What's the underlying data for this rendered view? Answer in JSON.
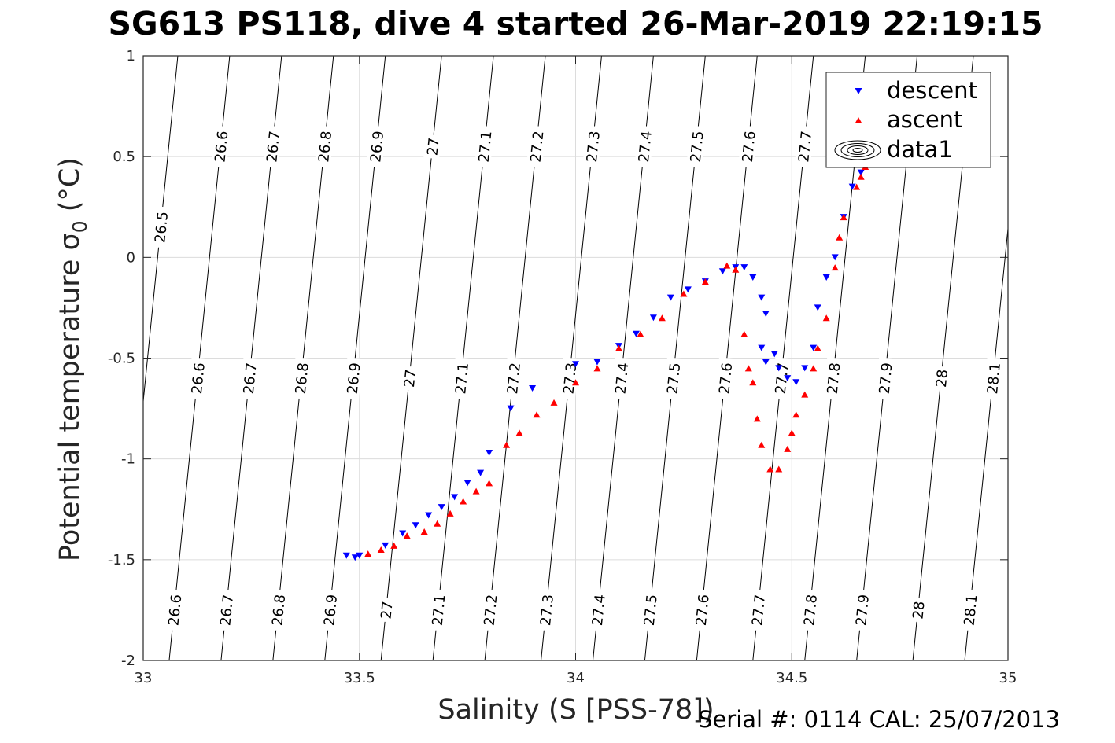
{
  "title": "SG613 PS118, dive 4 started 26-Mar-2019 22:19:15",
  "footer": "Serial #: 0114  CAL: 25/07/2013",
  "chart_data": {
    "type": "scatter",
    "xlabel": "Salinity (S [PSS-78])",
    "ylabel": "Potential temperature σ",
    "ylabel_sub": "0",
    "ylabel_unit": " (°C)",
    "xlim": [
      33,
      35
    ],
    "ylim": [
      -2,
      1
    ],
    "xticks": [
      33,
      33.5,
      34,
      34.5,
      35
    ],
    "xtick_labels": [
      "33",
      "33.5",
      "34",
      "34.5",
      "35"
    ],
    "yticks": [
      -2,
      -1.5,
      -1,
      -0.5,
      0,
      0.5,
      1
    ],
    "ytick_labels": [
      "-2",
      "-1.5",
      "-1",
      "-0.5",
      "0",
      "0.5",
      "1"
    ],
    "grid": true,
    "legend": {
      "position": "top-right",
      "entries": [
        {
          "label": "descent",
          "marker": "triangle-down",
          "color": "#0000ff"
        },
        {
          "label": "ascent",
          "marker": "triangle-up",
          "color": "#ff0000"
        },
        {
          "label": "data1",
          "marker": "contour",
          "color": "#000000"
        }
      ]
    },
    "isopycnals": [
      {
        "sigma": "26.5",
        "x_bottom": 32.94,
        "x_top": 33.08,
        "labels_y": [
          0.15
        ]
      },
      {
        "sigma": "26.6",
        "x_bottom": 33.06,
        "x_top": 33.2,
        "labels_y": [
          0.55,
          -0.6,
          -1.75
        ]
      },
      {
        "sigma": "26.7",
        "x_bottom": 33.18,
        "x_top": 33.32,
        "labels_y": [
          0.55,
          -0.6,
          -1.75
        ]
      },
      {
        "sigma": "26.8",
        "x_bottom": 33.3,
        "x_top": 33.44,
        "labels_y": [
          0.55,
          -0.6,
          -1.75
        ]
      },
      {
        "sigma": "26.9",
        "x_bottom": 33.42,
        "x_top": 33.56,
        "labels_y": [
          0.55,
          -0.6,
          -1.75
        ]
      },
      {
        "sigma": "27",
        "x_bottom": 33.55,
        "x_top": 33.69,
        "labels_y": [
          0.55,
          -0.6,
          -1.75
        ]
      },
      {
        "sigma": "27.1",
        "x_bottom": 33.67,
        "x_top": 33.81,
        "labels_y": [
          0.55,
          -0.6,
          -1.75
        ]
      },
      {
        "sigma": "27.2",
        "x_bottom": 33.79,
        "x_top": 33.93,
        "labels_y": [
          0.55,
          -0.6,
          -1.75
        ]
      },
      {
        "sigma": "27.3",
        "x_bottom": 33.92,
        "x_top": 34.06,
        "labels_y": [
          0.55,
          -0.6,
          -1.75
        ]
      },
      {
        "sigma": "27.4",
        "x_bottom": 34.04,
        "x_top": 34.18,
        "labels_y": [
          0.55,
          -0.6,
          -1.75
        ]
      },
      {
        "sigma": "27.5",
        "x_bottom": 34.16,
        "x_top": 34.3,
        "labels_y": [
          0.55,
          -0.6,
          -1.75
        ]
      },
      {
        "sigma": "27.6",
        "x_bottom": 34.28,
        "x_top": 34.42,
        "labels_y": [
          0.55,
          -0.6,
          -1.75
        ]
      },
      {
        "sigma": "27.7",
        "x_bottom": 34.41,
        "x_top": 34.55,
        "labels_y": [
          0.55,
          -0.6,
          -1.75
        ]
      },
      {
        "sigma": "27.8",
        "x_bottom": 34.53,
        "x_top": 34.67,
        "labels_y": [
          -0.6,
          -1.75
        ]
      },
      {
        "sigma": "27.9",
        "x_bottom": 34.65,
        "x_top": 34.79,
        "labels_y": [
          -0.6,
          -1.75
        ]
      },
      {
        "sigma": "28",
        "x_bottom": 34.78,
        "x_top": 34.92,
        "labels_y": [
          -0.6,
          -1.75
        ]
      },
      {
        "sigma": "28.1",
        "x_bottom": 34.9,
        "x_top": 35.04,
        "labels_y": [
          -0.6,
          -1.75
        ]
      }
    ],
    "series": [
      {
        "name": "descent",
        "marker": "triangle-down",
        "color": "#0000ff",
        "points": [
          [
            33.47,
            -1.48
          ],
          [
            33.49,
            -1.49
          ],
          [
            33.5,
            -1.48
          ],
          [
            33.56,
            -1.43
          ],
          [
            33.6,
            -1.37
          ],
          [
            33.63,
            -1.33
          ],
          [
            33.66,
            -1.28
          ],
          [
            33.69,
            -1.24
          ],
          [
            33.72,
            -1.19
          ],
          [
            33.75,
            -1.12
          ],
          [
            33.78,
            -1.07
          ],
          [
            33.8,
            -0.97
          ],
          [
            33.85,
            -0.75
          ],
          [
            33.9,
            -0.65
          ],
          [
            34.0,
            -0.53
          ],
          [
            34.05,
            -0.52
          ],
          [
            34.1,
            -0.44
          ],
          [
            34.14,
            -0.38
          ],
          [
            34.18,
            -0.3
          ],
          [
            34.22,
            -0.2
          ],
          [
            34.26,
            -0.16
          ],
          [
            34.3,
            -0.12
          ],
          [
            34.34,
            -0.07
          ],
          [
            34.37,
            -0.05
          ],
          [
            34.39,
            -0.05
          ],
          [
            34.41,
            -0.1
          ],
          [
            34.43,
            -0.2
          ],
          [
            34.44,
            -0.28
          ],
          [
            34.43,
            -0.45
          ],
          [
            34.44,
            -0.52
          ],
          [
            34.46,
            -0.48
          ],
          [
            34.47,
            -0.55
          ],
          [
            34.49,
            -0.6
          ],
          [
            34.51,
            -0.62
          ],
          [
            34.53,
            -0.55
          ],
          [
            34.55,
            -0.45
          ],
          [
            34.56,
            -0.25
          ],
          [
            34.58,
            -0.1
          ],
          [
            34.6,
            0.0
          ],
          [
            34.62,
            0.2
          ],
          [
            34.64,
            0.35
          ],
          [
            34.66,
            0.42
          ],
          [
            34.67,
            0.48
          ]
        ]
      },
      {
        "name": "ascent",
        "marker": "triangle-up",
        "color": "#ff0000",
        "points": [
          [
            33.52,
            -1.47
          ],
          [
            33.55,
            -1.45
          ],
          [
            33.58,
            -1.43
          ],
          [
            33.61,
            -1.38
          ],
          [
            33.65,
            -1.36
          ],
          [
            33.68,
            -1.32
          ],
          [
            33.71,
            -1.27
          ],
          [
            33.74,
            -1.21
          ],
          [
            33.77,
            -1.16
          ],
          [
            33.8,
            -1.12
          ],
          [
            33.84,
            -0.93
          ],
          [
            33.87,
            -0.87
          ],
          [
            33.91,
            -0.78
          ],
          [
            33.95,
            -0.72
          ],
          [
            34.0,
            -0.62
          ],
          [
            34.05,
            -0.55
          ],
          [
            34.1,
            -0.45
          ],
          [
            34.15,
            -0.38
          ],
          [
            34.2,
            -0.3
          ],
          [
            34.25,
            -0.18
          ],
          [
            34.3,
            -0.12
          ],
          [
            34.35,
            -0.04
          ],
          [
            34.37,
            -0.06
          ],
          [
            34.39,
            -0.38
          ],
          [
            34.4,
            -0.55
          ],
          [
            34.41,
            -0.62
          ],
          [
            34.42,
            -0.8
          ],
          [
            34.43,
            -0.93
          ],
          [
            34.45,
            -1.05
          ],
          [
            34.47,
            -1.05
          ],
          [
            34.49,
            -0.95
          ],
          [
            34.5,
            -0.87
          ],
          [
            34.51,
            -0.78
          ],
          [
            34.53,
            -0.68
          ],
          [
            34.55,
            -0.55
          ],
          [
            34.56,
            -0.45
          ],
          [
            34.58,
            -0.3
          ],
          [
            34.6,
            -0.05
          ],
          [
            34.61,
            0.1
          ],
          [
            34.62,
            0.2
          ],
          [
            34.65,
            0.35
          ],
          [
            34.66,
            0.4
          ],
          [
            34.67,
            0.45
          ]
        ]
      }
    ]
  }
}
